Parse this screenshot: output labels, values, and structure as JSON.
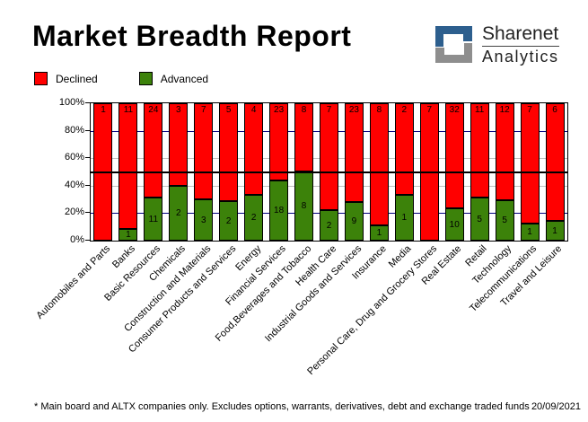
{
  "header": {
    "title": "Market Breadth Report",
    "brand": {
      "name": "Sharenet",
      "sub": "Analytics",
      "mark_blue": "#2d5f8e",
      "mark_gray": "#8e8e8e"
    }
  },
  "legend": {
    "items": [
      {
        "label": "Declined",
        "color": "#ff0000"
      },
      {
        "label": "Advanced",
        "color": "#3c820a"
      }
    ]
  },
  "chart_data": {
    "type": "bar",
    "stacked": true,
    "normalized": "percent",
    "categories": [
      "Automobiles and Parts",
      "Banks",
      "Basic Resources",
      "Chemicals",
      "Construction and Materials",
      "Consumer Products and Services",
      "Energy",
      "Financial Services",
      "Food,Beverages and Tobacco",
      "Health Care",
      "Industrial Goods and Services",
      "Insurance",
      "Media",
      "Personal Care, Drug and Grocery Stores",
      "Real Estate",
      "Retail",
      "Technology",
      "Telecommunications",
      "Travel and Leisure"
    ],
    "series": [
      {
        "name": "Declined",
        "color": "#ff0000",
        "values": [
          1,
          11,
          24,
          3,
          7,
          5,
          4,
          23,
          8,
          7,
          23,
          8,
          2,
          7,
          32,
          11,
          12,
          7,
          6
        ]
      },
      {
        "name": "Advanced",
        "color": "#3c820a",
        "values": [
          0,
          1,
          11,
          2,
          3,
          2,
          2,
          18,
          8,
          2,
          9,
          1,
          1,
          0,
          10,
          5,
          5,
          1,
          1
        ]
      }
    ],
    "ylabel": "",
    "xlabel": "",
    "ylim": [
      0,
      100
    ],
    "y_ticks": [
      {
        "value": 0,
        "label": "0%"
      },
      {
        "value": 20,
        "label": "20%"
      },
      {
        "value": 40,
        "label": "40%"
      },
      {
        "value": 60,
        "label": "60%"
      },
      {
        "value": 80,
        "label": "80%"
      },
      {
        "value": 100,
        "label": "100%"
      }
    ],
    "gridlines": [
      {
        "value": 20,
        "color": "#000080"
      },
      {
        "value": 40,
        "color": "#c0c0c0"
      },
      {
        "value": 60,
        "color": "#c0c0c0"
      },
      {
        "value": 80,
        "color": "#000080"
      }
    ],
    "reference_line": {
      "value": 50,
      "color": "#000000"
    },
    "legend_position": "top-left",
    "bar_labels": "counts"
  },
  "footer": {
    "note": "* Main board and ALTX companies only. Excludes options, warrants, derivatives, debt and exchange traded funds",
    "date": "20/09/2021"
  }
}
